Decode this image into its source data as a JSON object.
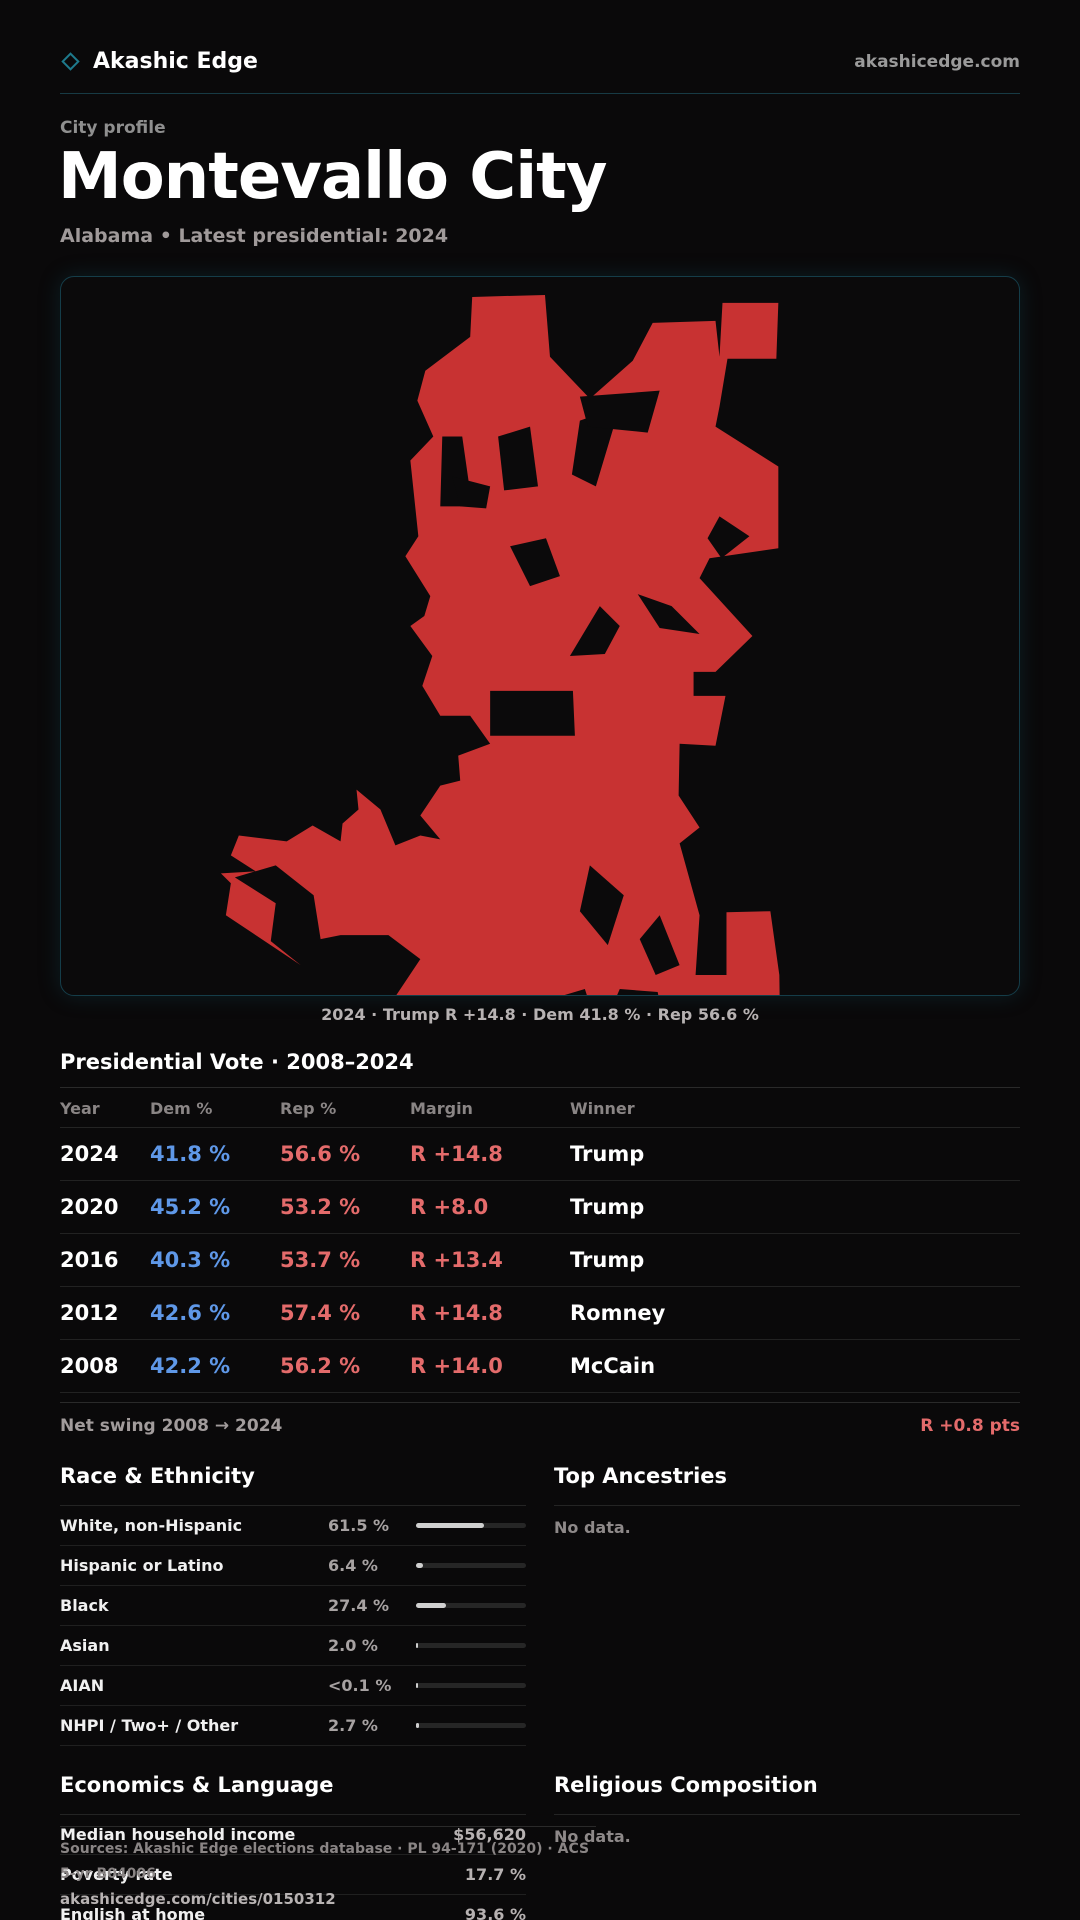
{
  "header": {
    "brand": "Akashic Edge",
    "site": "akashicedge.com"
  },
  "profile": {
    "eyebrow": "City profile",
    "city": "Montevallo City",
    "subtitle": "Alabama • Latest presidential: 2024"
  },
  "map": {
    "fill_color": "#c83232",
    "caption": "2024 · Trump R +14.8 · Dem 41.8 % · Rep 56.6 %"
  },
  "presidential": {
    "title": "Presidential Vote · 2008–2024",
    "headers": {
      "year": "Year",
      "dem": "Dem %",
      "rep": "Rep %",
      "margin": "Margin",
      "winner": "Winner"
    },
    "rows": [
      {
        "year": "2024",
        "dem": "41.8 %",
        "rep": "56.6 %",
        "margin": "R +14.8",
        "winner": "Trump"
      },
      {
        "year": "2020",
        "dem": "45.2 %",
        "rep": "53.2 %",
        "margin": "R +8.0",
        "winner": "Trump"
      },
      {
        "year": "2016",
        "dem": "40.3 %",
        "rep": "53.7 %",
        "margin": "R +13.4",
        "winner": "Trump"
      },
      {
        "year": "2012",
        "dem": "42.6 %",
        "rep": "57.4 %",
        "margin": "R +14.8",
        "winner": "Romney"
      },
      {
        "year": "2008",
        "dem": "42.2 %",
        "rep": "56.2 %",
        "margin": "R +14.0",
        "winner": "McCain"
      }
    ],
    "swing_label": "Net swing 2008 → 2024",
    "swing_value": "R +0.8 pts"
  },
  "race": {
    "title": "Race & Ethnicity",
    "rows": [
      {
        "name": "White, non-Hispanic",
        "pct": "61.5 %",
        "share": 61.5
      },
      {
        "name": "Hispanic or Latino",
        "pct": "6.4 %",
        "share": 6.4
      },
      {
        "name": "Black",
        "pct": "27.4 %",
        "share": 27.4
      },
      {
        "name": "Asian",
        "pct": "2.0 %",
        "share": 2.0
      },
      {
        "name": "AIAN",
        "pct": "<0.1 %",
        "share": 0.05
      },
      {
        "name": "NHPI / Two+ / Other",
        "pct": "2.7 %",
        "share": 2.7
      }
    ]
  },
  "ancestries": {
    "title": "Top Ancestries",
    "empty": "No data."
  },
  "economics": {
    "title": "Economics & Language",
    "rows": [
      {
        "name": "Median household income",
        "value": "$56,620"
      },
      {
        "name": "Poverty rate",
        "value": "17.7 %"
      },
      {
        "name": "English at home",
        "value": "93.6 %"
      }
    ]
  },
  "religion": {
    "title": "Religious Composition",
    "empty": "No data."
  },
  "footer": {
    "sources": "Sources: Akashic Edge elections database · PL 94-171 (2020) · ACS 5-yr B04006",
    "url": "akashicedge.com/cities/0150312"
  }
}
